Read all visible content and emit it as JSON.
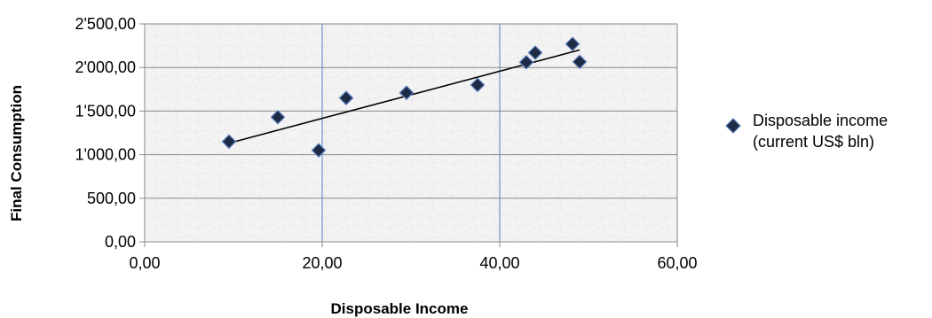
{
  "chart_data": {
    "type": "scatter",
    "xlabel": "Disposable Income",
    "ylabel": "Final Consumption",
    "xlim": [
      0,
      60
    ],
    "ylim": [
      0,
      2500
    ],
    "x_ticks": [
      "0,00",
      "20,00",
      "40,00",
      "60,00"
    ],
    "y_ticks": [
      "0,00",
      "500,00",
      "1'000,00",
      "1'500,00",
      "2'000,00",
      "2'500,00"
    ],
    "grid": true,
    "legend_position": "right",
    "series": [
      {
        "name_lines": [
          "Disposable income",
          "(current US$ bln)"
        ],
        "marker": "diamond",
        "color": "#1f2a44",
        "points": [
          {
            "x": 9.5,
            "y": 1150
          },
          {
            "x": 15.0,
            "y": 1430
          },
          {
            "x": 19.6,
            "y": 1050
          },
          {
            "x": 22.7,
            "y": 1650
          },
          {
            "x": 29.5,
            "y": 1710
          },
          {
            "x": 37.5,
            "y": 1800
          },
          {
            "x": 43.0,
            "y": 2060
          },
          {
            "x": 44.0,
            "y": 2170
          },
          {
            "x": 48.2,
            "y": 2270
          },
          {
            "x": 49.0,
            "y": 2065
          }
        ]
      }
    ],
    "trendline": {
      "type": "linear",
      "color": "#000000",
      "x_range": [
        9.5,
        49.0
      ]
    }
  }
}
